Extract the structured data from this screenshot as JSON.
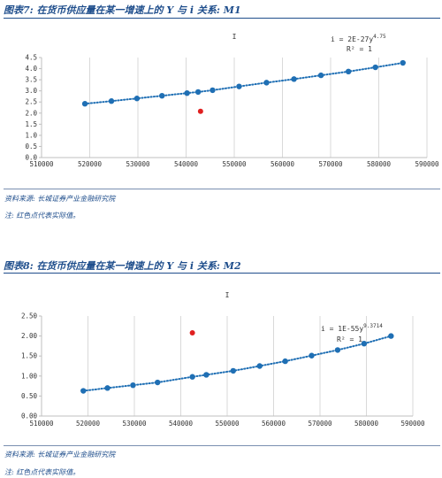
{
  "figures": [
    {
      "title": "图表7: 在货币供应量在某一增速上的 Y 与 i 关系: M1",
      "source": "资料来源: 长城证券产业金融研究院",
      "note": "注: 红色点代表实际值。"
    },
    {
      "title": "图表8: 在货币供应量在某一增速上的 Y 与 i 关系: M2",
      "source": "资料来源: 长城证券产业金融研究院",
      "note": "注: 红色点代表实际值。"
    }
  ],
  "chart_data": [
    {
      "type": "scatter",
      "title": "I",
      "xlabel": "",
      "ylabel": "",
      "xlim": [
        510000,
        590000
      ],
      "ylim": [
        0,
        4.5
      ],
      "xticks": [
        510000,
        520000,
        530000,
        540000,
        550000,
        560000,
        570000,
        580000,
        590000
      ],
      "yticks": [
        0,
        0.5,
        1,
        1.5,
        2,
        2.5,
        3,
        3.5,
        4,
        4.5
      ],
      "ytick_labels": [
        "0.0",
        "0.5",
        "1.0",
        "1.5",
        "2.0",
        "2.5",
        "3.0",
        "3.5",
        "4.0",
        "4.5"
      ],
      "grid": "vertical",
      "trendline": {
        "equation_prefix": "i = 2E-27y",
        "equation_exp": "4.75",
        "r2": "R² = 1"
      },
      "series": [
        {
          "color": "#1f6fb4",
          "x": [
            519000,
            524500,
            529800,
            535000,
            540200,
            542500,
            545500,
            551000,
            556700,
            562400,
            568000,
            573700,
            579300,
            585000
          ],
          "y": [
            2.42,
            2.54,
            2.66,
            2.78,
            2.9,
            2.95,
            3.03,
            3.2,
            3.37,
            3.53,
            3.7,
            3.87,
            4.06,
            4.26
          ]
        },
        {
          "color": "#e02020",
          "x": [
            543000
          ],
          "y": [
            2.08
          ]
        }
      ]
    },
    {
      "type": "scatter",
      "title": "I",
      "xlabel": "",
      "ylabel": "",
      "xlim": [
        510000,
        590000
      ],
      "ylim": [
        0,
        2.5
      ],
      "xticks": [
        510000,
        520000,
        530000,
        540000,
        550000,
        560000,
        570000,
        580000,
        590000
      ],
      "yticks": [
        0,
        0.5,
        1,
        1.5,
        2,
        2.5
      ],
      "ytick_labels": [
        "0.00",
        "0.50",
        "1.00",
        "1.50",
        "2.00",
        "2.50"
      ],
      "grid": "vertical",
      "trendline": {
        "equation_prefix": "i = 1E-55y",
        "equation_exp": "9.3714",
        "r2": "R² = 1"
      },
      "series": [
        {
          "color": "#1f6fb4",
          "x": [
            519000,
            524200,
            529700,
            535000,
            542500,
            545500,
            551300,
            557000,
            562500,
            568200,
            573800,
            579500,
            585300
          ],
          "y": [
            0.63,
            0.7,
            0.77,
            0.84,
            0.98,
            1.03,
            1.13,
            1.25,
            1.37,
            1.51,
            1.65,
            1.81,
            2.0
          ]
        },
        {
          "color": "#e02020",
          "x": [
            542500
          ],
          "y": [
            2.08
          ]
        }
      ]
    }
  ]
}
